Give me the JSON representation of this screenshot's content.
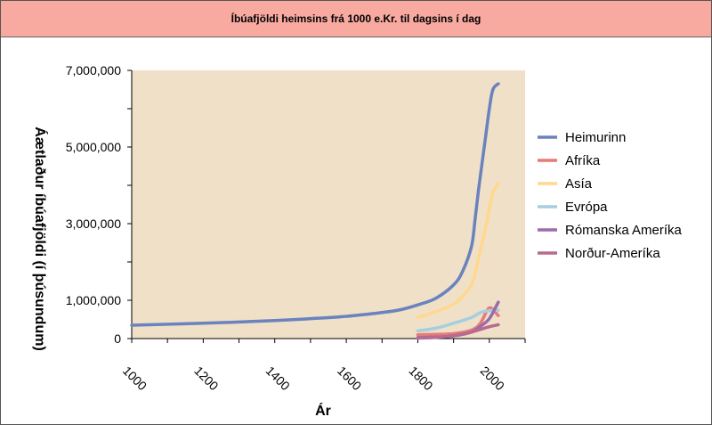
{
  "chart_data": {
    "type": "line",
    "title": "Íbúafjöldi heimsins frá 1000 e.Kr. til dagsins í dag",
    "xlabel": "Ár",
    "ylabel": "Áætlaður íbúafjöldi (í þúsundum)",
    "xlim": [
      1000,
      2100
    ],
    "ylim": [
      0,
      7000000
    ],
    "x_ticks": [
      1000,
      1200,
      1400,
      1600,
      1800,
      2000
    ],
    "y_ticks": [
      {
        "value": 7000000,
        "label": "7,000,000"
      },
      {
        "value": 5000000,
        "label": "5,000,000"
      },
      {
        "value": 3000000,
        "label": "3,000,000"
      },
      {
        "value": 1000000,
        "label": "1,000,000"
      },
      {
        "value": 0,
        "label": "0"
      }
    ],
    "legend_position": "right",
    "series": [
      {
        "name": "Heimurinn",
        "color": "#6a82bd",
        "x": [
          1000,
          1200,
          1400,
          1500,
          1600,
          1700,
          1750,
          1800,
          1850,
          1900,
          1925,
          1950,
          1960,
          1970,
          1980,
          1990,
          2000,
          2010,
          2025
        ],
        "y": [
          350000,
          400000,
          470000,
          520000,
          580000,
          680000,
          750000,
          880000,
          1050000,
          1400000,
          1750000,
          2400000,
          3100000,
          3900000,
          4600000,
          5300000,
          6000000,
          6500000,
          6650000
        ]
      },
      {
        "name": "Afríka",
        "color": "#e77b78",
        "x": [
          1800,
          1850,
          1900,
          1950,
          1975,
          2000,
          2025
        ],
        "y": [
          100000,
          110000,
          130000,
          220000,
          400000,
          800000,
          600000
        ]
      },
      {
        "name": "Asía",
        "color": "#ffd88e",
        "x": [
          1800,
          1850,
          1900,
          1925,
          1950,
          1960,
          1970,
          1980,
          1990,
          2000,
          2010,
          2025
        ],
        "y": [
          550000,
          700000,
          900000,
          1100000,
          1400000,
          1700000,
          2100000,
          2500000,
          2900000,
          3400000,
          3800000,
          4050000
        ]
      },
      {
        "name": "Evrópa",
        "color": "#a5cfe0",
        "x": [
          1800,
          1850,
          1900,
          1950,
          1975,
          2000,
          2025
        ],
        "y": [
          200000,
          270000,
          400000,
          550000,
          680000,
          730000,
          740000
        ]
      },
      {
        "name": "Rómanska Ameríka",
        "color": "#9c6bab",
        "x": [
          1800,
          1850,
          1900,
          1950,
          1975,
          2000,
          2025
        ],
        "y": [
          25000,
          40000,
          70000,
          170000,
          320000,
          520000,
          950000
        ]
      },
      {
        "name": "Norður-Ameríka",
        "color": "#b86a8f",
        "x": [
          1800,
          1850,
          1900,
          1950,
          1975,
          2000,
          2025
        ],
        "y": [
          10000,
          30000,
          80000,
          170000,
          240000,
          310000,
          360000
        ]
      }
    ]
  }
}
